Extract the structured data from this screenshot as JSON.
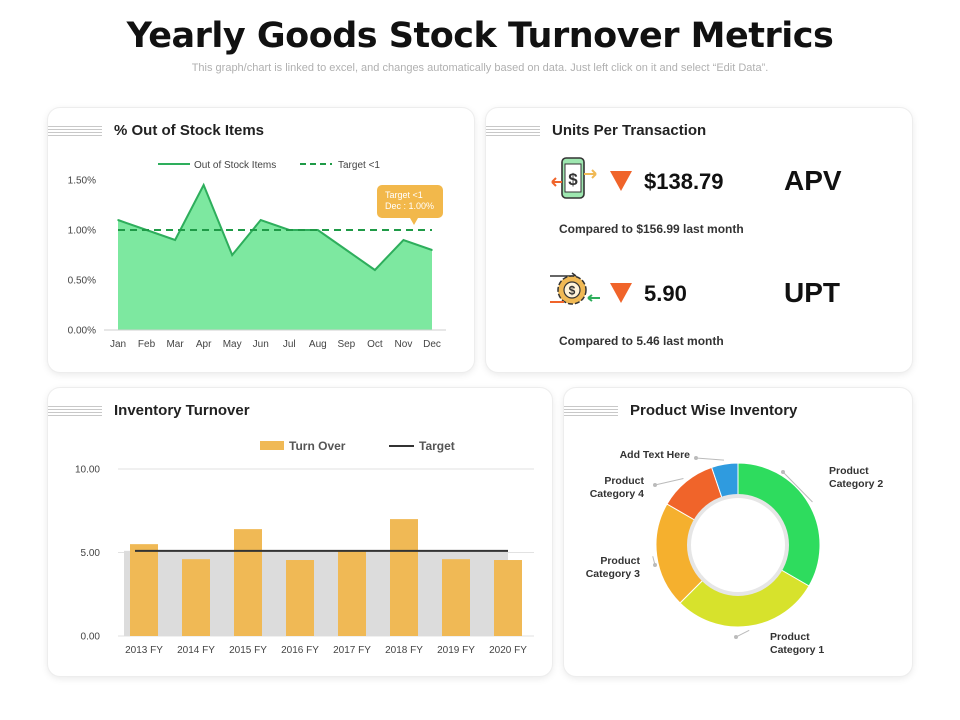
{
  "header": {
    "title": "Yearly Goods Stock Turnover Metrics",
    "subtitle": "This graph/chart is linked to excel, and changes automatically based on data. Just left click on it and select “Edit Data”."
  },
  "cards": {
    "stock": {
      "title": "% Out of Stock Items"
    },
    "upt": {
      "title": "Units Per Transaction"
    },
    "turnover": {
      "title": "Inventory Turnover"
    },
    "pie": {
      "title": "Product Wise Inventory"
    }
  },
  "kpis": [
    {
      "value": "$138.79",
      "code": "APV",
      "note": "Compared to $156.99 last month",
      "icon": "dollar-phone-icon",
      "trend_icon": "down-triangle-icon"
    },
    {
      "value": "5.90",
      "code": "UPT",
      "note": "Compared to 5.46 last month",
      "icon": "gear-dollar-icon",
      "trend_icon": "down-triangle-icon"
    }
  ],
  "colors": {
    "area_fill": "#7de8a0",
    "area_line": "#2eae5c",
    "target_dash": "#1f9a47",
    "callout": "#f2b84b",
    "bar": "#f0b955",
    "bar_bg": "#dcdcdc",
    "target_line": "#333333",
    "trend_down": "#f0642a"
  },
  "chart_data": [
    {
      "type": "area",
      "categories": [
        "Jan",
        "Feb",
        "Mar",
        "Apr",
        "May",
        "Jun",
        "Jul",
        "Aug",
        "Sep",
        "Oct",
        "Nov",
        "Dec"
      ],
      "series": [
        {
          "name": "Out of Stock Items",
          "values": [
            1.1,
            1.0,
            0.9,
            1.45,
            0.75,
            1.1,
            1.0,
            1.0,
            0.8,
            0.6,
            0.9,
            0.8
          ]
        },
        {
          "name": "Target <1",
          "values": [
            1.0,
            1.0,
            1.0,
            1.0,
            1.0,
            1.0,
            1.0,
            1.0,
            1.0,
            1.0,
            1.0,
            1.0
          ]
        }
      ],
      "y_ticks": [
        "0.00%",
        "0.50%",
        "1.00%",
        "1.50%"
      ],
      "ylim": [
        0,
        1.5
      ],
      "annotation": {
        "line1": "Target <1",
        "line2": "Dec : 1.00%"
      },
      "legend": "top-center",
      "grid": false
    },
    {
      "type": "bar",
      "categories": [
        "2013 FY",
        "2014 FY",
        "2015 FY",
        "2016 FY",
        "2017 FY",
        "2018 FY",
        "2019 FY",
        "2020 FY"
      ],
      "series": [
        {
          "name": "Turn Over",
          "values": [
            5.5,
            4.6,
            6.4,
            4.55,
            5.1,
            7.0,
            4.6,
            4.55
          ]
        },
        {
          "name": "Target",
          "values": [
            5.1,
            5.1,
            5.1,
            5.1,
            5.1,
            5.1,
            5.1,
            5.1
          ]
        }
      ],
      "y_ticks": [
        "0.00",
        "5.00",
        "10.00"
      ],
      "ylim": [
        0,
        10
      ],
      "legend": "top-center",
      "grid": true
    },
    {
      "type": "pie",
      "donut": true,
      "slices": [
        {
          "label": "Product Category 2",
          "value": 32,
          "color": "#2edc5e"
        },
        {
          "label": "Product Category 1",
          "value": 28,
          "color": "#d7e22c"
        },
        {
          "label": "Product Category 3",
          "value": 20,
          "color": "#f5b02e"
        },
        {
          "label": "Product Category 4",
          "value": 11,
          "color": "#f0642a"
        },
        {
          "label": "Add Text Here",
          "value": 5,
          "color": "#2f9bdf"
        }
      ]
    }
  ]
}
